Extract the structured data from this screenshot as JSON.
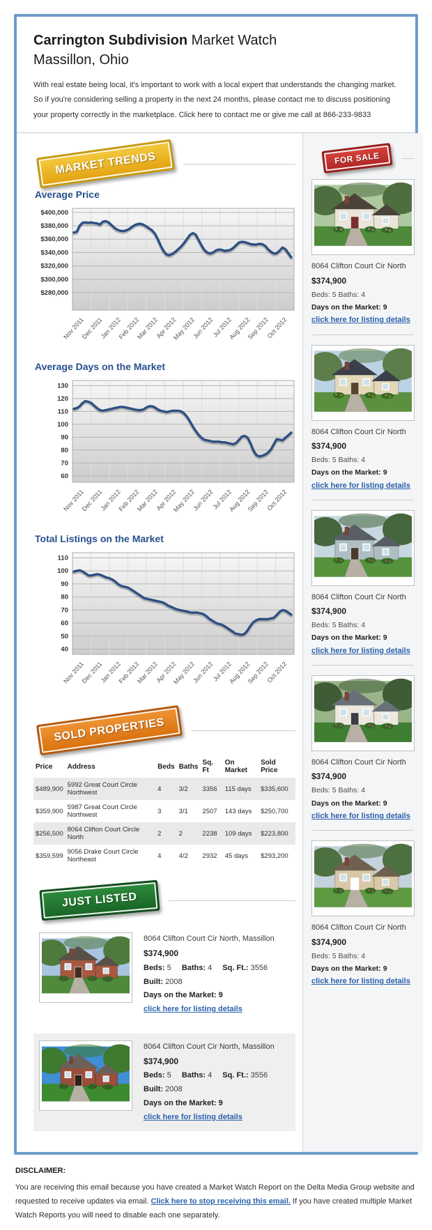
{
  "header": {
    "title_bold": "Carrington Subdivision",
    "title_rest": " Market Watch",
    "subtitle": "Massillon, Ohio",
    "intro": "With real estate being local, it's important to work with a local expert that understands the changing market. So if you're considering selling a property in the next 24 months, please contact me to discuss positioning your property correctly in the marketplace. Click here to contact me or give me call at 866-233-9833"
  },
  "badges": {
    "market_trends": "MARKET TRENDS",
    "for_sale": "FOR SALE",
    "sold_properties": "SOLD PROPERTIES",
    "just_listed": "JUST LISTED"
  },
  "colors": {
    "outer_border": "#6f9dc9",
    "heading": "#28508c",
    "chart_line": "#2d4f82",
    "link": "#2b62ad",
    "badge_gold": "#e8a81c",
    "badge_red": "#c23330",
    "badge_orange": "#e07a1e",
    "badge_green": "#1d7c31"
  },
  "chart_data": [
    {
      "type": "line",
      "title": "Average Price",
      "x_labels": [
        "Nov 2011",
        "Dec 2011",
        "Jan 2012",
        "Feb 2012",
        "Mar 2012",
        "Apr 2012",
        "May 2012",
        "Jun 2012",
        "Jul 2012",
        "Aug 2012",
        "Sep 2012",
        "Oct 2012"
      ],
      "values": [
        370000,
        371000,
        380000,
        384500,
        385000,
        384500,
        385000,
        384000,
        383500,
        382000,
        386000,
        387000,
        385000,
        381000,
        377000,
        374000,
        372500,
        372000,
        373000,
        375000,
        378000,
        381000,
        382500,
        383000,
        381500,
        379000,
        376000,
        373000,
        368000,
        360000,
        350000,
        342000,
        337000,
        336000,
        338000,
        341000,
        345000,
        349000,
        354000,
        360000,
        366000,
        369000,
        367000,
        359000,
        351000,
        344000,
        340000,
        338500,
        340000,
        343000,
        344500,
        344000,
        342500,
        343000,
        344000,
        347000,
        351000,
        355000,
        356000,
        355500,
        354000,
        352500,
        352000,
        352000,
        353000,
        352500,
        350000,
        345000,
        341000,
        338500,
        339000,
        343000,
        347500,
        345000,
        339000,
        333000
      ],
      "yticks": [
        280000,
        300000,
        320000,
        340000,
        360000,
        380000,
        400000
      ],
      "ytick_labels": [
        "$280,000",
        "$300,000",
        "$320,000",
        "$340,000",
        "$360,000",
        "$380,000",
        "$400,000"
      ],
      "ylim": [
        254000,
        406000
      ],
      "grid": true,
      "legend": "none"
    },
    {
      "type": "line",
      "title": "Average Days on the Market",
      "x_labels": [
        "Nov 2011",
        "Dec 2011",
        "Jan 2012",
        "Feb 2012",
        "Mar 2012",
        "Apr 2012",
        "May 2012",
        "Jun 2012",
        "Jul 2012",
        "Aug 2012",
        "Sep 2012",
        "Oct 2012"
      ],
      "values": [
        112,
        112.5,
        114,
        116.5,
        118,
        117.5,
        116.5,
        114.5,
        112.5,
        111,
        110.5,
        111,
        111.5,
        112,
        112.5,
        113,
        113.5,
        113.5,
        113,
        112.5,
        112,
        111.5,
        111,
        111,
        111.5,
        113,
        114,
        114,
        113,
        111.5,
        110.5,
        110,
        109.5,
        110,
        110.5,
        110.5,
        110.5,
        110,
        108.5,
        106,
        102.5,
        98.5,
        95,
        92,
        89.5,
        88,
        87.5,
        87,
        86.5,
        86.5,
        86.5,
        86,
        86,
        85.5,
        85,
        84.5,
        85.5,
        88,
        90.5,
        91,
        89.5,
        85,
        79.5,
        76,
        75,
        75.5,
        76.5,
        78,
        80.5,
        84.5,
        88.5,
        88,
        87.5,
        89.5,
        91.5,
        93.5
      ],
      "yticks": [
        60,
        70,
        80,
        90,
        100,
        110,
        120,
        130
      ],
      "ytick_labels": [
        "60",
        "70",
        "80",
        "90",
        "100",
        "110",
        "120",
        "130"
      ],
      "ylim": [
        55,
        134
      ],
      "grid": true,
      "legend": "none"
    },
    {
      "type": "line",
      "title": "Total Listings on the Market",
      "x_labels": [
        "Nov 2011",
        "Dec 2011",
        "Jan 2012",
        "Feb 2012",
        "Mar 2012",
        "Apr 2012",
        "May 2012",
        "Jun 2012",
        "Jul 2012",
        "Aug 2012",
        "Sep 2012",
        "Oct 2012"
      ],
      "values": [
        99.5,
        100,
        100.5,
        99.5,
        98,
        96.5,
        96.5,
        97,
        97.5,
        97,
        96,
        95,
        94.5,
        93.5,
        92,
        90,
        88.5,
        88,
        87.5,
        86.5,
        85,
        83.5,
        82,
        80.5,
        79,
        78.5,
        78,
        77.5,
        77,
        76.5,
        76,
        75,
        73.5,
        72.5,
        71.5,
        70.5,
        70,
        69.5,
        69,
        68.5,
        68,
        68,
        68,
        67.5,
        67,
        65.5,
        63.5,
        62,
        60.5,
        59.5,
        59,
        58,
        56.5,
        55,
        53.5,
        52,
        51.5,
        51,
        51.5,
        54,
        57.5,
        60.5,
        62,
        63,
        63,
        63,
        63,
        63.5,
        64,
        66,
        68.5,
        70,
        69.5,
        68,
        66.5
      ],
      "yticks": [
        40,
        50,
        60,
        70,
        80,
        90,
        100,
        110
      ],
      "ytick_labels": [
        "40",
        "50",
        "60",
        "70",
        "80",
        "90",
        "100",
        "110"
      ],
      "ylim": [
        36,
        114
      ],
      "grid": true,
      "legend": "none"
    }
  ],
  "for_sale": {
    "listings": [
      {
        "address": "8064 Clifton Court Cir North",
        "price": "$374,900",
        "beds_baths": "Beds: 5 Baths: 4",
        "days": "Days on the Market: 9",
        "link": "click here for listing details"
      },
      {
        "address": "8064 Clifton Court Cir North",
        "price": "$374,900",
        "beds_baths": "Beds: 5 Baths: 4",
        "days": "Days on the Market: 9",
        "link": "click here for listing details"
      },
      {
        "address": "8064 Clifton Court Cir North",
        "price": "$374,900",
        "beds_baths": "Beds: 5 Baths: 4",
        "days": "Days on the Market: 9",
        "link": "click here for listing details"
      },
      {
        "address": "8064 Clifton Court Cir North",
        "price": "$374,900",
        "beds_baths": "Beds: 5 Baths: 4",
        "days": "Days on the Market: 9",
        "link": "click here for listing details"
      },
      {
        "address": "8064 Clifton Court Cir North",
        "price": "$374,900",
        "beds_baths": "Beds: 5 Baths: 4",
        "days": "Days on the Market: 9",
        "link": "click here for listing details"
      }
    ]
  },
  "sold": {
    "headers": [
      "Price",
      "Address",
      "Beds",
      "Baths",
      "Sq. Ft",
      "On Market",
      "Sold Price"
    ],
    "rows": [
      [
        "$489,900",
        "5992 Great Court Circle Northwest",
        "4",
        "3/2",
        "3356",
        "115 days",
        "$335,600"
      ],
      [
        "$359,900",
        "5987 Great Court Circle Northwest",
        "3",
        "3/1",
        "2507",
        "143 days",
        "$250,700"
      ],
      [
        "$256,500",
        "8064 Clifton Court Circle North",
        "2",
        "2",
        "2238",
        "109 days",
        "$223,800"
      ],
      [
        "$359,599",
        "9056 Drake Court Circle Northeast",
        "4",
        "4/2",
        "2932",
        "45 days",
        "$293,200"
      ]
    ]
  },
  "just_listed": {
    "cards": [
      {
        "address": "8064 Clifton Court Cir North, Massillon",
        "price": "$374,900",
        "specs": [
          {
            "label": "Beds:",
            "value": "5"
          },
          {
            "label": "Baths:",
            "value": "4"
          },
          {
            "label": "Sq. Ft.:",
            "value": "3556"
          },
          {
            "label": "Built:",
            "value": "2008"
          }
        ],
        "days": "Days on the Market: 9",
        "link": "click here for listing details"
      },
      {
        "address": "8064 Clifton Court Cir North, Massillon",
        "price": "$374,900",
        "specs": [
          {
            "label": "Beds:",
            "value": "5"
          },
          {
            "label": "Baths:",
            "value": "4"
          },
          {
            "label": "Sq. Ft.:",
            "value": "3556"
          },
          {
            "label": "Built:",
            "value": "2008"
          }
        ],
        "days": "Days on the Market: 9",
        "link": "click here for listing details"
      }
    ]
  },
  "disclaimer": {
    "heading": "DISCLAIMER:",
    "text_before": "You are receiving this email because you have created a Market Watch Report on the Delta Media Group website and requested to receive updates via email. ",
    "link": "Click here to stop receiving this email.",
    "text_after": " If you have created multiple Market Watch Reports you will need to disable each one separately."
  }
}
